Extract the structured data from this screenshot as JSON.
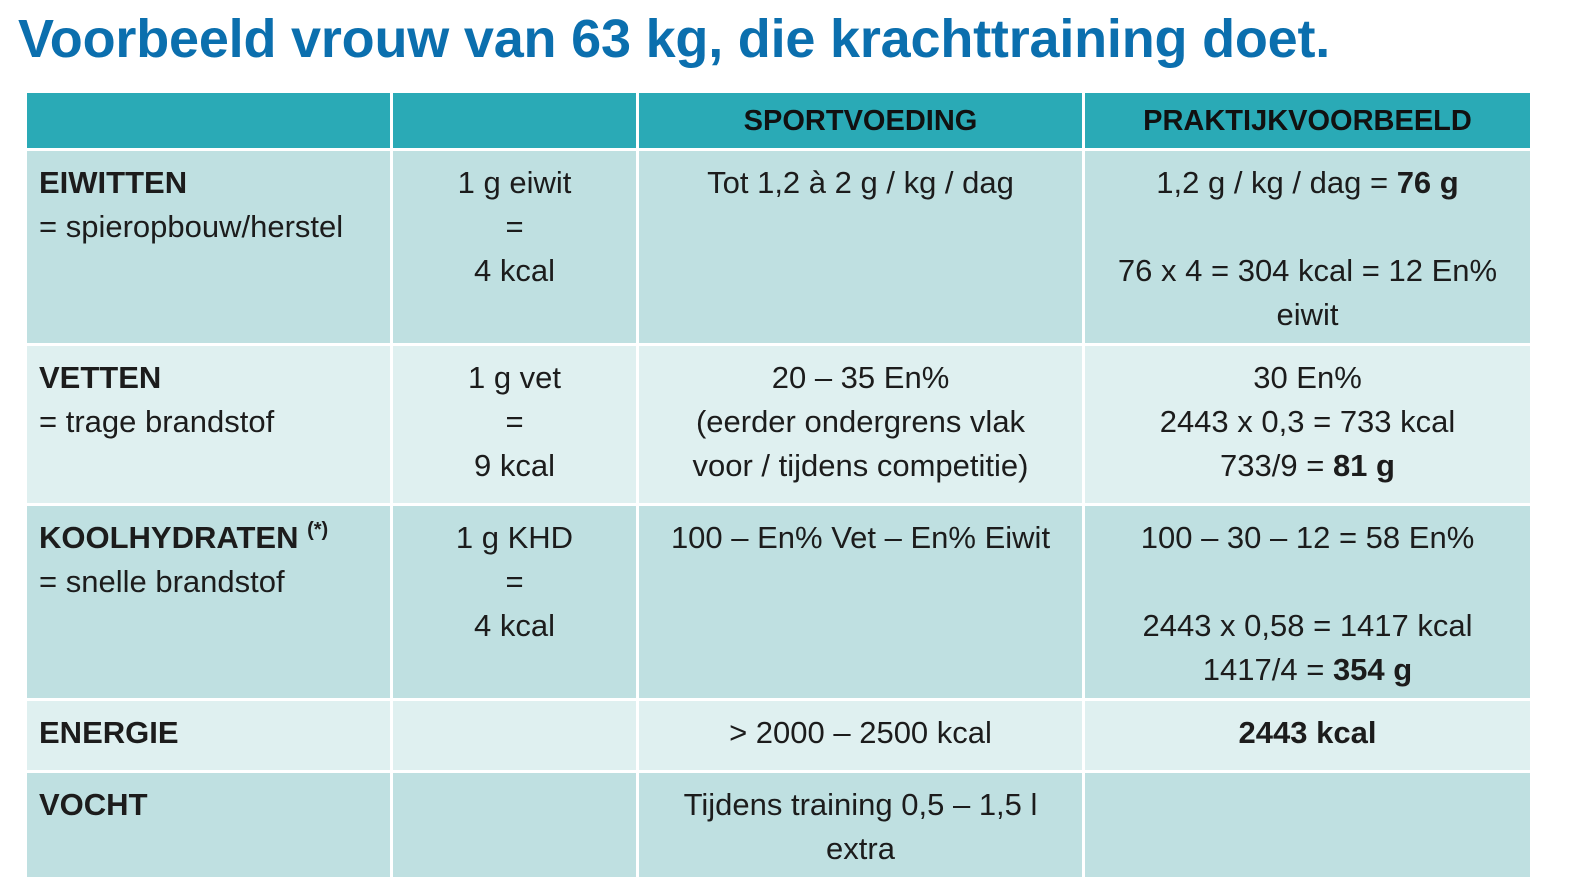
{
  "title": "Voorbeeld vrouw van 63 kg, die krachttraining doet.",
  "headers": [
    "",
    "",
    "SPORTVOEDING",
    "PRAKTIJKVOORBEELD"
  ],
  "rows": [
    {
      "name": "EIWITTEN",
      "desc": "= spieropbouw/herstel",
      "unit": [
        "1 g eiwit",
        "=",
        "4 kcal"
      ],
      "sport": [
        "Tot 1,2 à 2 g / kg / dag"
      ],
      "practice": {
        "l1_text": "1,2 g / kg / dag = ",
        "l1_bold": "76 g",
        "l3": "76 x 4 = 304 kcal = 12 En%",
        "l4": "eiwit"
      }
    },
    {
      "name": "VETTEN",
      "desc": "= trage brandstof",
      "unit": [
        "1 g vet",
        "=",
        "9 kcal"
      ],
      "sport": [
        "20 – 35 En%",
        "(eerder ondergrens vlak",
        "voor / tijdens competitie)"
      ],
      "practice": {
        "l1": "30 En%",
        "l2": "2443 x 0,3 = 733 kcal",
        "l3_text": "733/9 = ",
        "l3_bold": "81 g"
      }
    },
    {
      "name": "KOOLHYDRATEN",
      "footmark": "(*)",
      "desc": "= snelle brandstof",
      "unit": [
        "1 g KHD",
        "=",
        "4 kcal"
      ],
      "sport": [
        "100 – En% Vet – En% Eiwit"
      ],
      "practice": {
        "l1": "100 – 30 – 12 = 58 En%",
        "l3": "2443 x 0,58 = 1417 kcal",
        "l4_text": "1417/4 = ",
        "l4_bold": "354 g"
      }
    },
    {
      "name": "ENERGIE",
      "sport": [
        "> 2000 – 2500 kcal"
      ],
      "practice": {
        "bold": "2443 kcal"
      }
    },
    {
      "name": "VOCHT",
      "sport": [
        "Tijdens training 0,5 – 1,5 l",
        "extra"
      ]
    }
  ]
}
